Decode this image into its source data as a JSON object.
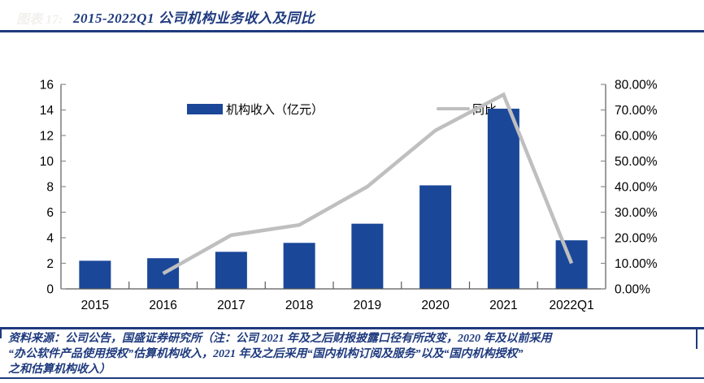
{
  "colors": {
    "navy": "#1E3A7E",
    "bar_blue": "#1A4798",
    "line_gray": "#BFBFBF",
    "axis_gray": "#595959",
    "tick_gray": "#8C8C8C",
    "faint_caption": "#F2F0ED"
  },
  "figure": {
    "caption_prefix": "图表 17:",
    "title": "2015-2022Q1 公司机构业务收入及同比"
  },
  "legend": [
    {
      "label": "机构收入（亿元）",
      "type": "bar",
      "color": "#1A4798"
    },
    {
      "label": "同比",
      "type": "line",
      "color": "#BFBFBF"
    }
  ],
  "chart_data": {
    "type": "bar+line combo",
    "categories": [
      "2015",
      "2016",
      "2017",
      "2018",
      "2019",
      "2020",
      "2021",
      "2022Q1"
    ],
    "series": [
      {
        "name": "机构收入（亿元）",
        "type": "bar",
        "axis": "left",
        "color": "#1A4798",
        "values": [
          2.2,
          2.4,
          2.9,
          3.6,
          5.1,
          8.1,
          14.1,
          3.8
        ]
      },
      {
        "name": "同比",
        "type": "line",
        "axis": "right",
        "color": "#BFBFBF",
        "unit": "%",
        "values": [
          null,
          6,
          21,
          25,
          40,
          62,
          76,
          10
        ]
      }
    ],
    "left_axis": {
      "min": 0,
      "max": 16,
      "step": 2,
      "ticks": [
        "0",
        "2",
        "4",
        "6",
        "8",
        "10",
        "12",
        "14",
        "16"
      ]
    },
    "right_axis": {
      "min": 0,
      "max": 80,
      "step": 10,
      "ticks": [
        "0.00%",
        "10.00%",
        "20.00%",
        "30.00%",
        "40.00%",
        "50.00%",
        "60.00%",
        "70.00%",
        "80.00%"
      ]
    },
    "grid": false,
    "legend_position": "top"
  },
  "footer": {
    "lines": [
      "资料来源：公司公告，国盛证券研究所（注：公司 2021 年及之后财报披露口径有所改变，2020 年及以前采用",
      "“办公软件产品使用授权”估算机构收入，2021 年及之后采用“国内机构订阅及服务”以及“国内机构授权”",
      "之和估算机构收入）"
    ]
  }
}
